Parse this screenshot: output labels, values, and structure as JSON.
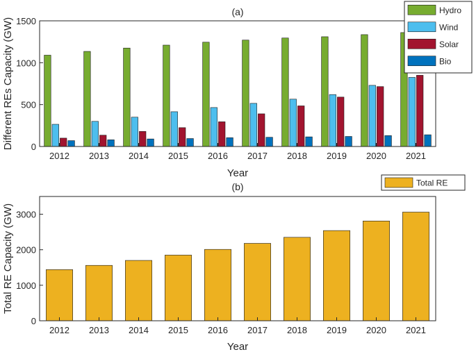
{
  "chart_data": [
    {
      "type": "bar",
      "title": "(a)",
      "xlabel": "Year",
      "ylabel": "Different REs Capacity (GW)",
      "categories": [
        "2012",
        "2013",
        "2014",
        "2015",
        "2016",
        "2017",
        "2018",
        "2019",
        "2020",
        "2021"
      ],
      "ylim": [
        0,
        1500
      ],
      "yticks": [
        0,
        500,
        1000,
        1500
      ],
      "legend_position": "top-right",
      "series": [
        {
          "name": "Hydro",
          "color": "#77ac30",
          "values": [
            1090,
            1135,
            1175,
            1210,
            1245,
            1270,
            1295,
            1310,
            1335,
            1360
          ]
        },
        {
          "name": "Wind",
          "color": "#4dbeee",
          "values": [
            265,
            300,
            350,
            415,
            465,
            515,
            565,
            620,
            730,
            825
          ]
        },
        {
          "name": "Solar",
          "color": "#a2142f",
          "values": [
            100,
            135,
            180,
            225,
            295,
            390,
            485,
            590,
            715,
            850
          ]
        },
        {
          "name": "Bio",
          "color": "#0072bd",
          "values": [
            70,
            80,
            90,
            95,
            105,
            110,
            115,
            120,
            130,
            140
          ]
        }
      ]
    },
    {
      "type": "bar",
      "title": "(b)",
      "xlabel": "Year",
      "ylabel": "Total RE Capacity (GW)",
      "categories": [
        "2012",
        "2013",
        "2014",
        "2015",
        "2016",
        "2017",
        "2018",
        "2019",
        "2020",
        "2021"
      ],
      "ylim": [
        0,
        3500
      ],
      "yticks": [
        0,
        1000,
        2000,
        3000
      ],
      "legend_position": "top-right",
      "series": [
        {
          "name": "Total RE",
          "color": "#edb120",
          "values": [
            1440,
            1560,
            1700,
            1850,
            2010,
            2180,
            2350,
            2540,
            2810,
            3060
          ]
        }
      ]
    }
  ]
}
